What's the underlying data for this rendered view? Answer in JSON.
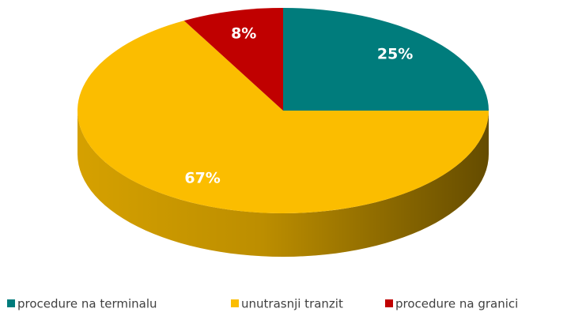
{
  "chart_data": {
    "type": "pie",
    "categories": [
      "procedure na terminalu",
      "unutrasnji tranzit",
      "procedure na granici"
    ],
    "values": [
      25,
      67,
      8
    ],
    "value_labels": [
      "25%",
      "67%",
      "8%"
    ],
    "colors": [
      "#007c7c",
      "#fbbd00",
      "#c00000"
    ],
    "legend": "bottom"
  }
}
